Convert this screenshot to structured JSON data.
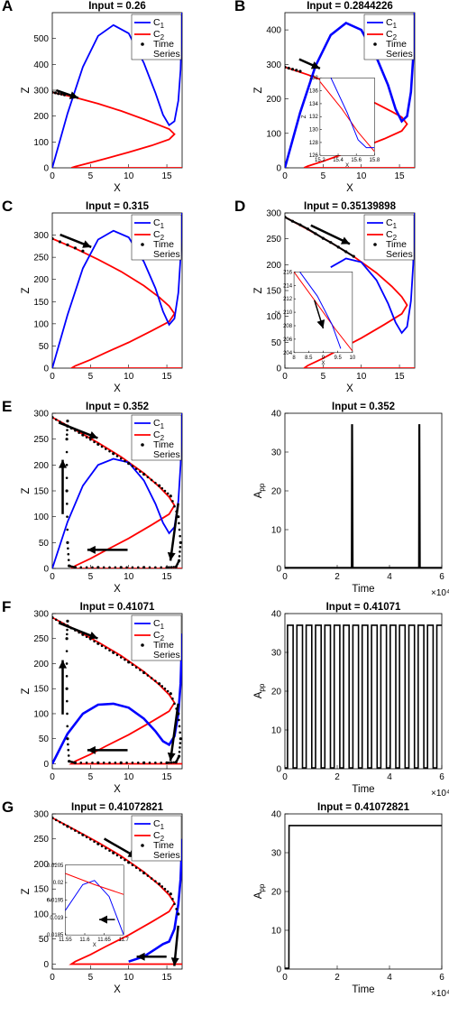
{
  "figure": {
    "panel_letters": [
      "A",
      "B",
      "C",
      "D",
      "E",
      "F",
      "G"
    ],
    "legend": {
      "c1_label": "C1",
      "c2_label": "C2",
      "ts_label_1": "Time",
      "ts_label_2": "Series"
    },
    "colors": {
      "c1": "#0000ff",
      "c2": "#ff0000",
      "time_series": "#000000",
      "axes": "#000000"
    }
  },
  "chart_data": [
    {
      "id": "A",
      "type": "line",
      "title": "Input = 0.26",
      "xlabel": "X",
      "ylabel": "Z",
      "xlim": [
        0,
        17
      ],
      "ylim": [
        0,
        600
      ],
      "xticks": [
        0,
        5,
        10,
        15
      ],
      "yticks": [
        0,
        100,
        200,
        300,
        400,
        500
      ],
      "series": [
        {
          "name": "C1",
          "x": [
            0,
            2,
            4,
            6,
            8,
            10,
            12,
            13.5,
            14.5,
            15.3,
            16,
            16.5,
            16.8,
            17
          ],
          "y": [
            0,
            210,
            390,
            510,
            552,
            520,
            405,
            290,
            205,
            165,
            180,
            260,
            380,
            600
          ]
        },
        {
          "name": "C2",
          "x": [
            0,
            3,
            6,
            9,
            12,
            14,
            15.3,
            16,
            15.3,
            13,
            10,
            7,
            5,
            3,
            2.5,
            5,
            10,
            15,
            17
          ],
          "y": [
            292,
            272,
            248,
            220,
            188,
            165,
            150,
            130,
            110,
            86,
            60,
            36,
            20,
            5,
            0,
            0,
            0,
            0,
            0
          ]
        },
        {
          "name": "Time Series",
          "x": [
            0,
            0.4,
            0.8,
            1.2,
            1.6
          ],
          "y": [
            292,
            290,
            287,
            285,
            282
          ]
        }
      ]
    },
    {
      "id": "B",
      "type": "line",
      "title": "Input = 0.2844226",
      "xlabel": "X",
      "ylabel": "Z",
      "xlim": [
        0,
        17
      ],
      "ylim": [
        0,
        450
      ],
      "xticks": [
        0,
        5,
        10,
        15
      ],
      "yticks": [
        0,
        100,
        200,
        300,
        400
      ],
      "series": [
        {
          "name": "C1",
          "x": [
            0,
            2,
            4,
            6,
            8,
            10,
            12,
            13.5,
            14.5,
            15.3,
            16,
            16.5,
            16.8,
            17
          ],
          "y": [
            0,
            160,
            295,
            385,
            420,
            400,
            320,
            240,
            170,
            135,
            150,
            220,
            320,
            450
          ]
        },
        {
          "name": "C2",
          "x": [
            0,
            3,
            6,
            9,
            12,
            14,
            15.3,
            16,
            15.3,
            13,
            10,
            7,
            5,
            3,
            2.5,
            5,
            10,
            15,
            17
          ],
          "y": [
            292,
            270,
            245,
            218,
            186,
            163,
            147,
            127,
            107,
            84,
            58,
            35,
            19,
            5,
            0,
            0,
            0,
            0,
            0
          ]
        },
        {
          "name": "Time Series",
          "x": [
            0,
            0.5,
            1,
            1.5,
            2
          ],
          "y": [
            292,
            289,
            286,
            283,
            280
          ]
        }
      ],
      "inset": {
        "xlim": [
          15.2,
          15.8
        ],
        "ylim": [
          126,
          138
        ],
        "xticks": [
          15.2,
          15.4,
          15.6,
          15.8
        ],
        "yticks": [
          126,
          128,
          130,
          132,
          134,
          136,
          138
        ],
        "xlabel": "X",
        "ylabel": "Z"
      }
    },
    {
      "id": "C",
      "type": "line",
      "title": "Input = 0.315",
      "xlabel": "X",
      "ylabel": "Z",
      "xlim": [
        0,
        17
      ],
      "ylim": [
        0,
        350
      ],
      "xticks": [
        0,
        5,
        10,
        15
      ],
      "yticks": [
        0,
        50,
        100,
        150,
        200,
        250,
        300
      ],
      "series": [
        {
          "name": "C1",
          "x": [
            0,
            2,
            4,
            6,
            8,
            10,
            12,
            13.5,
            14.5,
            15.3,
            16,
            16.5,
            16.8,
            17
          ],
          "y": [
            0,
            120,
            225,
            290,
            310,
            295,
            240,
            180,
            128,
            98,
            112,
            170,
            250,
            350
          ]
        },
        {
          "name": "C2",
          "x": [
            0,
            3,
            6,
            9,
            12,
            14,
            15.3,
            16,
            15.3,
            13,
            10,
            7,
            5,
            3,
            2.5,
            5,
            10,
            15,
            17
          ],
          "y": [
            292,
            270,
            245,
            218,
            186,
            160,
            140,
            123,
            105,
            84,
            58,
            35,
            19,
            5,
            0,
            0,
            0,
            0,
            0
          ]
        },
        {
          "name": "Time Series",
          "x": [
            0,
            1,
            2,
            3,
            4
          ],
          "y": [
            292,
            285,
            278,
            271,
            264
          ]
        }
      ]
    },
    {
      "id": "D",
      "type": "line",
      "title": "Input = 0.35139898",
      "xlabel": "X",
      "ylabel": "Z",
      "xlim": [
        0,
        17
      ],
      "ylim": [
        0,
        300
      ],
      "xticks": [
        0,
        5,
        10,
        15
      ],
      "yticks": [
        0,
        50,
        100,
        150,
        200,
        250,
        300
      ],
      "series": [
        {
          "name": "C1",
          "x": [
            6,
            8,
            10,
            12,
            13.5,
            14.5,
            15.3,
            16,
            16.5,
            16.8,
            17
          ],
          "y": [
            195,
            212,
            205,
            170,
            125,
            88,
            68,
            80,
            130,
            200,
            300
          ]
        },
        {
          "name": "C2",
          "x": [
            0,
            3,
            6,
            9,
            12,
            14,
            15.3,
            16,
            15.3,
            13,
            10,
            7,
            5,
            3,
            2.5,
            5,
            10,
            15,
            17
          ],
          "y": [
            292,
            268,
            243,
            216,
            184,
            158,
            138,
            122,
            105,
            84,
            58,
            35,
            19,
            5,
            0,
            0,
            0,
            0,
            0
          ]
        },
        {
          "name": "Time Series",
          "x": [
            0,
            1,
            2,
            3,
            4,
            5,
            6,
            7,
            8,
            9
          ],
          "y": [
            292,
            284,
            277,
            269,
            260,
            251,
            243,
            234,
            225,
            216
          ]
        }
      ],
      "inset": {
        "xlim": [
          8,
          10
        ],
        "ylim": [
          204,
          216
        ],
        "xticks": [
          8,
          8.5,
          9,
          9.5,
          10
        ],
        "yticks": [
          204,
          206,
          208,
          210,
          212,
          214,
          216
        ],
        "xlabel": "X",
        "ylabel": "Z"
      }
    },
    {
      "id": "E",
      "type": "line",
      "title": "Input = 0.352",
      "xlabel": "X",
      "ylabel": "Z",
      "xlim": [
        0,
        17
      ],
      "ylim": [
        0,
        300
      ],
      "xticks": [
        0,
        5,
        10,
        15
      ],
      "yticks": [
        0,
        50,
        100,
        150,
        200,
        250,
        300
      ],
      "series": [
        {
          "name": "C1",
          "x": [
            0,
            2,
            4,
            6,
            8,
            10,
            12,
            13.5,
            14.5,
            15.3,
            16,
            16.5,
            16.8,
            17
          ],
          "y": [
            0,
            90,
            160,
            200,
            212,
            205,
            170,
            125,
            88,
            68,
            80,
            130,
            200,
            300
          ]
        },
        {
          "name": "C2",
          "x": [
            0,
            3,
            6,
            9,
            12,
            14,
            15.3,
            16,
            15.3,
            13,
            10,
            7,
            5,
            3,
            2.5,
            5,
            10,
            15,
            17
          ],
          "y": [
            292,
            268,
            243,
            216,
            184,
            158,
            138,
            122,
            105,
            84,
            58,
            35,
            19,
            5,
            0,
            0,
            0,
            0,
            0
          ]
        },
        {
          "name": "Time Series",
          "x": [
            0,
            2,
            4,
            6,
            8,
            10,
            12,
            14,
            15.5,
            16.5,
            16.8,
            16.6,
            16.2,
            15,
            12,
            9,
            6,
            3,
            2.2,
            2,
            1.9,
            1.9,
            2
          ],
          "y": [
            292,
            275,
            258,
            240,
            222,
            203,
            182,
            160,
            140,
            100,
            50,
            15,
            3,
            2,
            2,
            2,
            2,
            2,
            5,
            50,
            150,
            250,
            285
          ]
        }
      ]
    },
    {
      "id": "E-right",
      "type": "line",
      "title": "Input = 0.352",
      "xlabel": "Time",
      "ylabel": "App",
      "x_exponent": "×10⁴",
      "xlim": [
        0,
        6
      ],
      "ylim": [
        0,
        40
      ],
      "xticks": [
        0,
        2,
        4,
        6
      ],
      "yticks": [
        0,
        10,
        20,
        30,
        40
      ],
      "series": [
        {
          "name": "App",
          "x": [
            0,
            2.55,
            2.56,
            2.58,
            2.6,
            5.12,
            5.13,
            5.15,
            5.17,
            6
          ],
          "y": [
            0.2,
            0.2,
            37,
            37,
            0.2,
            0.2,
            37,
            37,
            0.2,
            0.2
          ]
        }
      ]
    },
    {
      "id": "F",
      "type": "line",
      "title": "Input = 0.41071",
      "xlabel": "X",
      "ylabel": "Z",
      "xlim": [
        0,
        17
      ],
      "ylim": [
        -10,
        300
      ],
      "xticks": [
        0,
        5,
        10,
        15
      ],
      "yticks": [
        0,
        50,
        100,
        150,
        200,
        250,
        300
      ],
      "series": [
        {
          "name": "C1",
          "x": [
            0,
            2,
            4,
            6,
            8,
            10,
            12,
            13.5,
            14.5,
            15.3,
            16,
            16.5,
            16.8,
            17
          ],
          "y": [
            0,
            60,
            100,
            118,
            120,
            112,
            90,
            65,
            45,
            38,
            55,
            100,
            160,
            260
          ]
        },
        {
          "name": "C2",
          "x": [
            0,
            3,
            6,
            9,
            12,
            14,
            15.3,
            16,
            15.3,
            13,
            10,
            7,
            5,
            3,
            2.5,
            5,
            10,
            15,
            17
          ],
          "y": [
            292,
            268,
            243,
            216,
            184,
            158,
            138,
            122,
            105,
            84,
            58,
            35,
            19,
            5,
            0,
            0,
            0,
            0,
            0
          ]
        },
        {
          "name": "Time Series",
          "x": [
            0,
            2,
            4,
            6,
            8,
            10,
            12,
            14,
            15.5,
            16.5,
            16.8,
            16.6,
            16.2,
            15,
            12,
            9,
            6,
            3,
            2.2,
            2,
            1.9,
            1.9,
            2
          ],
          "y": [
            292,
            275,
            258,
            240,
            222,
            203,
            182,
            160,
            140,
            100,
            50,
            15,
            3,
            2,
            2,
            2,
            2,
            2,
            5,
            50,
            150,
            250,
            285
          ]
        }
      ]
    },
    {
      "id": "F-right",
      "type": "line",
      "title": "Input = 0.41071",
      "xlabel": "Time",
      "ylabel": "App",
      "x_exponent": "×10⁴",
      "xlim": [
        0,
        6
      ],
      "ylim": [
        0,
        40
      ],
      "xticks": [
        0,
        2,
        4,
        6
      ],
      "yticks": [
        0,
        10,
        20,
        30,
        40
      ],
      "series": [
        {
          "name": "App",
          "pulse_train": {
            "count": 17,
            "period": 0.357,
            "high": 37,
            "low": 0.2,
            "duty": 0.6
          }
        }
      ]
    },
    {
      "id": "G",
      "type": "line",
      "title": "Input = 0.41072821",
      "xlabel": "X",
      "ylabel": "Z",
      "xlim": [
        0,
        17
      ],
      "ylim": [
        -10,
        300
      ],
      "xticks": [
        0,
        5,
        10,
        15
      ],
      "yticks": [
        0,
        50,
        100,
        150,
        200,
        250,
        300
      ],
      "series": [
        {
          "name": "C1",
          "x": [
            10,
            12,
            13.5,
            14.5,
            15.3,
            16,
            16.5,
            16.8,
            17
          ],
          "y": [
            5,
            15,
            30,
            40,
            45,
            70,
            120,
            170,
            250
          ]
        },
        {
          "name": "C2",
          "x": [
            0,
            3,
            6,
            9,
            12,
            14,
            15.3,
            16,
            15.3,
            13,
            10,
            7,
            5,
            3,
            2.5,
            5,
            10,
            15,
            17
          ],
          "y": [
            292,
            268,
            243,
            216,
            184,
            158,
            138,
            122,
            105,
            84,
            58,
            35,
            19,
            5,
            0,
            0,
            0,
            0,
            0
          ]
        },
        {
          "name": "Time Series",
          "x": [
            0,
            2,
            4,
            6,
            8,
            10,
            12,
            14,
            15.5,
            16.5
          ],
          "y": [
            292,
            275,
            258,
            240,
            222,
            203,
            182,
            160,
            140,
            100
          ]
        }
      ],
      "inset": {
        "xlim": [
          11.55,
          11.7
        ],
        "ylim": [
          0.0185,
          0.0205
        ],
        "xticks": [
          11.55,
          11.6,
          11.65,
          11.7
        ],
        "yticks": [
          0.0185,
          0.019,
          0.0195,
          0.02,
          0.0205
        ],
        "xlabel": "X",
        "ylabel": "Z"
      }
    },
    {
      "id": "G-right",
      "type": "line",
      "title": "Input = 0.41072821",
      "xlabel": "Time",
      "ylabel": "App",
      "x_exponent": "×10⁴",
      "xlim": [
        0,
        6
      ],
      "ylim": [
        0,
        40
      ],
      "xticks": [
        0,
        2,
        4,
        6
      ],
      "yticks": [
        0,
        10,
        20,
        30,
        40
      ],
      "series": [
        {
          "name": "App",
          "x": [
            0,
            0.15,
            0.16,
            6
          ],
          "y": [
            0.2,
            0.2,
            37,
            37
          ]
        }
      ]
    }
  ]
}
